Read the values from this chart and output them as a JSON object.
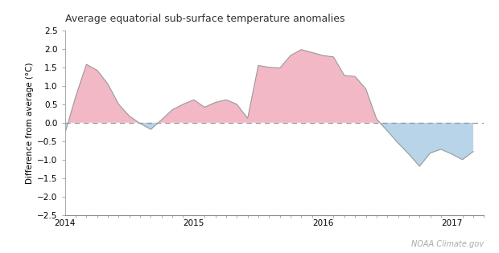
{
  "title": "Average equatorial sub-surface temperature anomalies",
  "ylabel": "Difference from average (°C)",
  "watermark": "NOAA Climate.gov",
  "ylim": [
    -2.5,
    2.5
  ],
  "xlim": [
    2014.0,
    2017.25
  ],
  "yticks": [
    -2.5,
    -2.0,
    -1.5,
    -1.0,
    -0.5,
    0.0,
    0.5,
    1.0,
    1.5,
    2.0,
    2.5
  ],
  "xtick_labels": [
    "2014",
    "2015",
    "2016",
    "2017"
  ],
  "xtick_positions": [
    2014.0,
    2015.0,
    2016.0,
    2017.0
  ],
  "line_color": "#999999",
  "fill_positive_color": "#f2b8c6",
  "fill_negative_color": "#b8d4e8",
  "dashed_line_color": "#999999",
  "background_color": "#ffffff",
  "x": [
    2014.0,
    2014.083,
    2014.167,
    2014.25,
    2014.333,
    2014.417,
    2014.5,
    2014.583,
    2014.667,
    2014.75,
    2014.833,
    2014.917,
    2015.0,
    2015.083,
    2015.167,
    2015.25,
    2015.333,
    2015.417,
    2015.5,
    2015.583,
    2015.667,
    2015.75,
    2015.833,
    2015.917,
    2016.0,
    2016.083,
    2016.167,
    2016.25,
    2016.333,
    2016.417,
    2016.5,
    2016.583,
    2016.667,
    2016.75,
    2016.833,
    2016.917,
    2017.0,
    2017.083,
    2017.167
  ],
  "y": [
    -0.3,
    0.7,
    1.58,
    1.42,
    1.05,
    0.5,
    0.18,
    -0.02,
    -0.18,
    0.08,
    0.35,
    0.5,
    0.62,
    0.42,
    0.55,
    0.62,
    0.5,
    0.12,
    1.55,
    1.5,
    1.48,
    1.82,
    1.98,
    1.9,
    1.82,
    1.78,
    1.28,
    1.25,
    0.92,
    0.1,
    -0.22,
    -0.55,
    -0.85,
    -1.18,
    -0.82,
    -0.72,
    -0.85,
    -1.0,
    -0.78
  ]
}
